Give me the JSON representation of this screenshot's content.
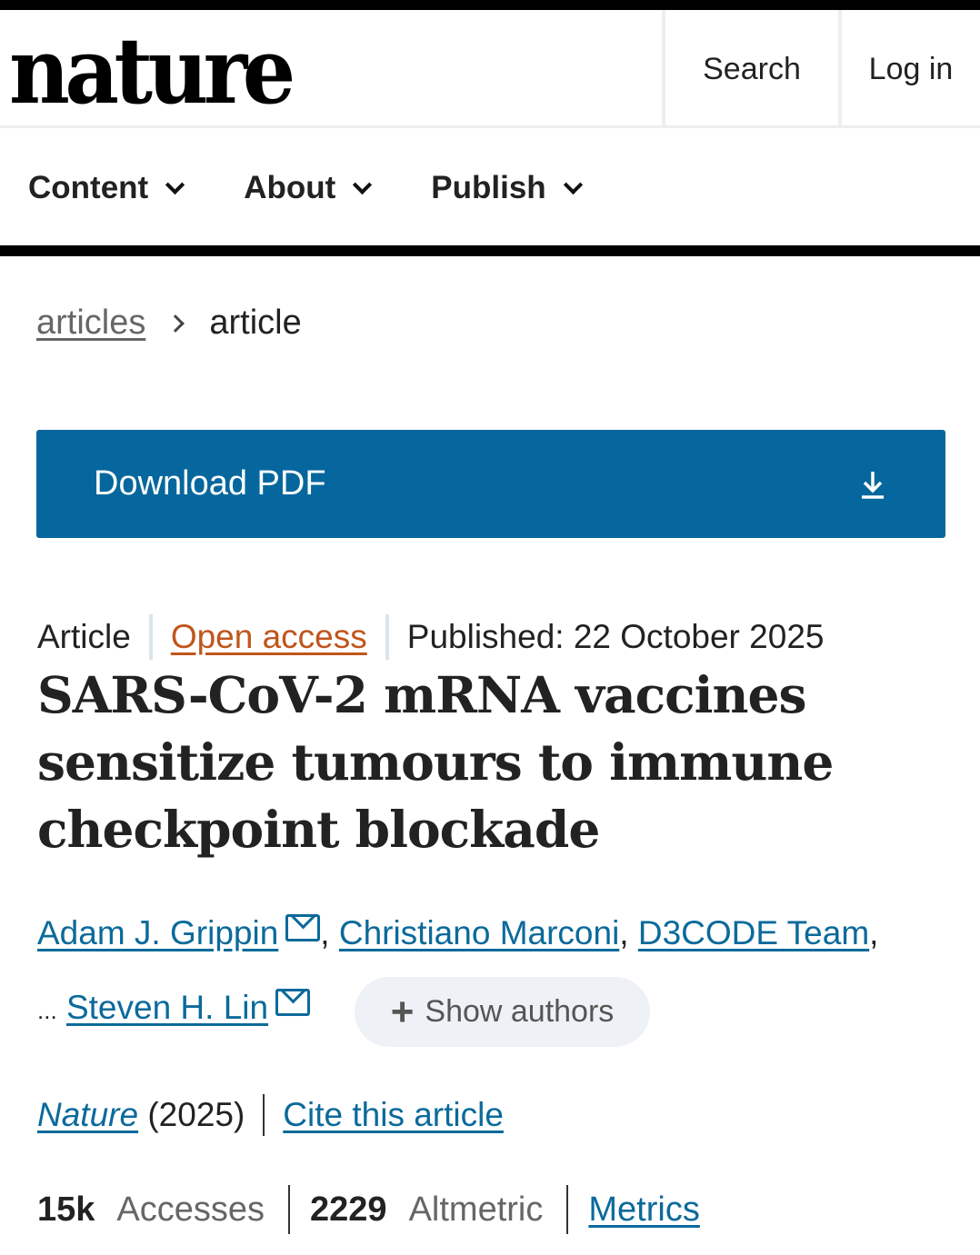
{
  "header": {
    "logo": "nature",
    "search": "Search",
    "login": "Log in"
  },
  "nav": {
    "items": [
      {
        "label": "Content"
      },
      {
        "label": "About"
      },
      {
        "label": "Publish"
      }
    ]
  },
  "breadcrumb": {
    "parent": "articles",
    "current": "article"
  },
  "download": {
    "label": "Download PDF",
    "icon": "download-icon",
    "color": "#05679d"
  },
  "meta": {
    "type": "Article",
    "access": "Open access",
    "published": "Published: 22 October 2025"
  },
  "title": "SARS-CoV-2 mRNA vaccines sensitize tumours to immune checkpoint blockade",
  "authors": {
    "a1": "Adam J. Grippin",
    "a2": "Christiano Marconi",
    "a3": "D3CODE Team",
    "ellipsis": "...",
    "a4": "Steven H. Lin",
    "show": "Show authors"
  },
  "citation": {
    "journal": "Nature",
    "year": "(2025)",
    "cite": "Cite this article"
  },
  "metrics": {
    "accesses_value": "15k",
    "accesses_label": "Accesses",
    "altmetric_value": "2229",
    "altmetric_label": "Altmetric",
    "metrics_link": "Metrics"
  }
}
